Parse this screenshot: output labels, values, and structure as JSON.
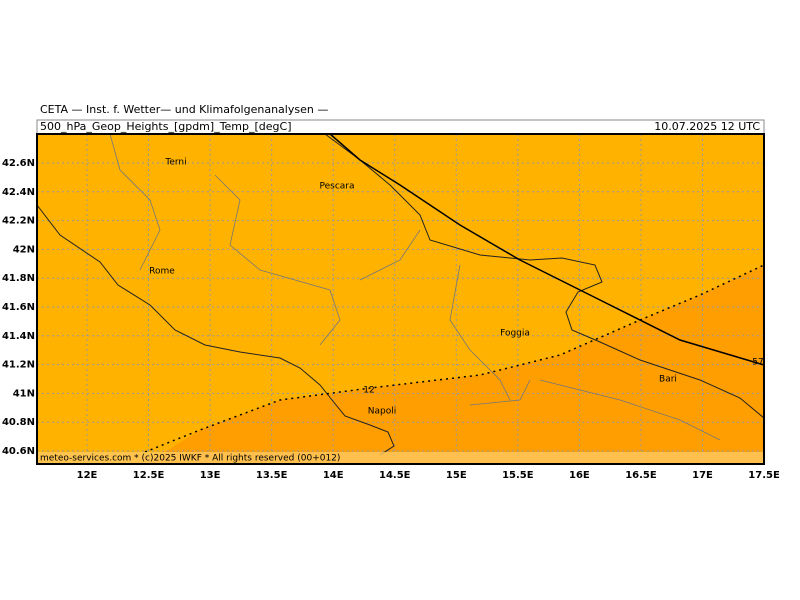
{
  "header": {
    "title": "CETA — Inst. f. Wetter— und Klimafolgenanalysen —",
    "field": "500_hPa_Geop_Heights_[gpdm]_Temp_[degC]",
    "valid": "10.07.2025 12 UTC"
  },
  "map": {
    "lon_ticks": [
      {
        "value": 12,
        "label": "12E"
      },
      {
        "value": 12.5,
        "label": "12.5E"
      },
      {
        "value": 13,
        "label": "13E"
      },
      {
        "value": 13.5,
        "label": "13.5E"
      },
      {
        "value": 14,
        "label": "14E"
      },
      {
        "value": 14.5,
        "label": "14.5E"
      },
      {
        "value": 15,
        "label": "15E"
      },
      {
        "value": 15.5,
        "label": "15.5E"
      },
      {
        "value": 16,
        "label": "16E"
      },
      {
        "value": 16.5,
        "label": "16.5E"
      },
      {
        "value": 17,
        "label": "17E"
      },
      {
        "value": 17.5,
        "label": "17.5E"
      }
    ],
    "lat_ticks": [
      {
        "value": 40.6,
        "label": "40.6N"
      },
      {
        "value": 40.8,
        "label": "40.8N"
      },
      {
        "value": 41,
        "label": "41N"
      },
      {
        "value": 41.2,
        "label": "41.2N"
      },
      {
        "value": 41.4,
        "label": "41.4N"
      },
      {
        "value": 41.6,
        "label": "41.6N"
      },
      {
        "value": 41.8,
        "label": "41.8N"
      },
      {
        "value": 42,
        "label": "42N"
      },
      {
        "value": 42.2,
        "label": "42.2N"
      },
      {
        "value": 42.4,
        "label": "42.4N"
      },
      {
        "value": 42.6,
        "label": "42.6N"
      }
    ],
    "cities": [
      "Terni",
      "Pescara",
      "Rome",
      "Foggia",
      "Bari",
      "Napoli"
    ],
    "contour_labels": [
      "12",
      "57"
    ],
    "footer": "meteo-services.com * (c)2025 IWKF * All rights reserved (00+012)"
  }
}
